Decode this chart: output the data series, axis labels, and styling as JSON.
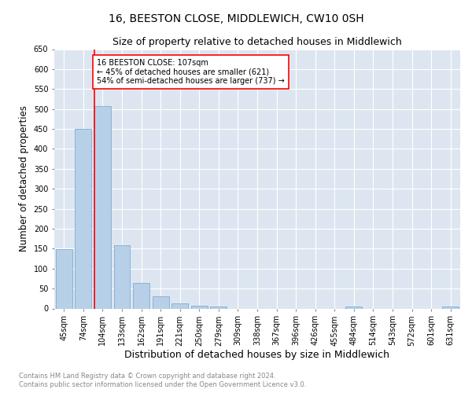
{
  "title": "16, BEESTON CLOSE, MIDDLEWICH, CW10 0SH",
  "subtitle": "Size of property relative to detached houses in Middlewich",
  "xlabel": "Distribution of detached houses by size in Middlewich",
  "ylabel": "Number of detached properties",
  "footnote1": "Contains HM Land Registry data © Crown copyright and database right 2024.",
  "footnote2": "Contains public sector information licensed under the Open Government Licence v3.0.",
  "categories": [
    "45sqm",
    "74sqm",
    "104sqm",
    "133sqm",
    "162sqm",
    "191sqm",
    "221sqm",
    "250sqm",
    "279sqm",
    "309sqm",
    "338sqm",
    "367sqm",
    "396sqm",
    "426sqm",
    "455sqm",
    "484sqm",
    "514sqm",
    "543sqm",
    "572sqm",
    "601sqm",
    "631sqm"
  ],
  "values": [
    148,
    450,
    508,
    158,
    65,
    30,
    12,
    7,
    4,
    0,
    0,
    0,
    0,
    0,
    0,
    5,
    0,
    0,
    0,
    0,
    4
  ],
  "bar_color": "#b8cfe8",
  "bar_edge_color": "#7aadd4",
  "subject_line_color": "red",
  "annotation_text": "16 BEESTON CLOSE: 107sqm\n← 45% of detached houses are smaller (621)\n54% of semi-detached houses are larger (737) →",
  "annotation_box_color": "red",
  "annotation_text_color": "black",
  "ylim": [
    0,
    650
  ],
  "yticks": [
    0,
    50,
    100,
    150,
    200,
    250,
    300,
    350,
    400,
    450,
    500,
    550,
    600,
    650
  ],
  "plot_bg_color": "#dde6f0",
  "grid_color": "white",
  "title_fontsize": 10,
  "subtitle_fontsize": 9,
  "xlabel_fontsize": 9,
  "ylabel_fontsize": 8.5,
  "tick_fontsize": 7,
  "footnote_fontsize": 6
}
